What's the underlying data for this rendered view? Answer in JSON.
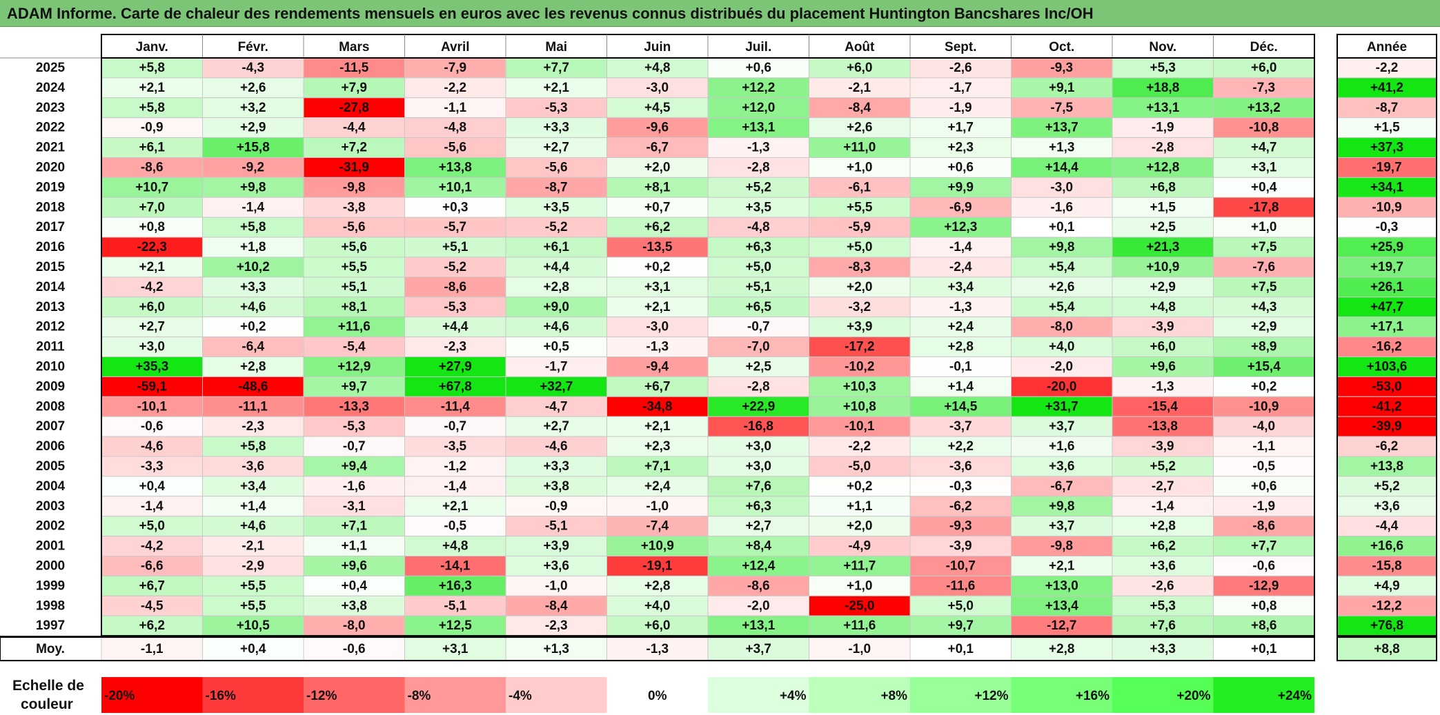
{
  "title": "ADAM Informe. Carte de chaleur des rendements mensuels en euros avec les revenus connus distribués du placement Huntington Bancshares Inc/OH",
  "chart_data": {
    "type": "heatmap",
    "columns": [
      "Janv.",
      "Févr.",
      "Mars",
      "Avril",
      "Mai",
      "Juin",
      "Juil.",
      "Août",
      "Sept.",
      "Oct.",
      "Nov.",
      "Déc."
    ],
    "year_column_label": "Année",
    "rows": [
      {
        "year": "2025",
        "values": [
          "+5,8",
          "-4,3",
          "-11,5",
          "-7,9",
          "+7,7",
          "+4,8",
          "+0,6",
          "+6,0",
          "-2,6",
          "-9,3",
          "+5,3",
          "+6,0"
        ],
        "annual": "-2,2"
      },
      {
        "year": "2024",
        "values": [
          "+2,1",
          "+2,6",
          "+7,9",
          "-2,2",
          "+2,1",
          "-3,0",
          "+12,2",
          "-2,1",
          "-1,7",
          "+9,1",
          "+18,8",
          "-7,3"
        ],
        "annual": "+41,2"
      },
      {
        "year": "2023",
        "values": [
          "+5,8",
          "+3,2",
          "-27,8",
          "-1,1",
          "-5,3",
          "+4,5",
          "+12,0",
          "-8,4",
          "-1,9",
          "-7,5",
          "+13,1",
          "+13,2"
        ],
        "annual": "-8,7"
      },
      {
        "year": "2022",
        "values": [
          "-0,9",
          "+2,9",
          "-4,4",
          "-4,8",
          "+3,3",
          "-9,6",
          "+13,1",
          "+2,6",
          "+1,7",
          "+13,7",
          "-1,9",
          "-10,8"
        ],
        "annual": "+1,5"
      },
      {
        "year": "2021",
        "values": [
          "+6,1",
          "+15,8",
          "+7,2",
          "-5,6",
          "+2,7",
          "-6,7",
          "-1,3",
          "+11,0",
          "+2,3",
          "+1,3",
          "-2,8",
          "+4,7"
        ],
        "annual": "+37,3"
      },
      {
        "year": "2020",
        "values": [
          "-8,6",
          "-9,2",
          "-31,9",
          "+13,8",
          "-5,6",
          "+2,0",
          "-2,8",
          "+1,0",
          "+0,6",
          "+14,4",
          "+12,8",
          "+3,1"
        ],
        "annual": "-19,7"
      },
      {
        "year": "2019",
        "values": [
          "+10,7",
          "+9,8",
          "-9,8",
          "+10,1",
          "-8,7",
          "+8,1",
          "+5,2",
          "-6,1",
          "+9,9",
          "-3,0",
          "+6,8",
          "+0,4"
        ],
        "annual": "+34,1"
      },
      {
        "year": "2018",
        "values": [
          "+7,0",
          "-1,4",
          "-3,8",
          "+0,3",
          "+3,5",
          "+0,7",
          "+3,5",
          "+5,5",
          "-6,9",
          "-1,6",
          "+1,5",
          "-17,8"
        ],
        "annual": "-10,9"
      },
      {
        "year": "2017",
        "values": [
          "+0,8",
          "+5,8",
          "-5,6",
          "-5,7",
          "-5,2",
          "+6,2",
          "-4,8",
          "-5,9",
          "+12,3",
          "+0,1",
          "+2,5",
          "+1,0"
        ],
        "annual": "-0,3"
      },
      {
        "year": "2016",
        "values": [
          "-22,3",
          "+1,8",
          "+5,6",
          "+5,1",
          "+6,1",
          "-13,5",
          "+6,3",
          "+5,0",
          "-1,4",
          "+9,8",
          "+21,3",
          "+7,5"
        ],
        "annual": "+25,9"
      },
      {
        "year": "2015",
        "values": [
          "+2,1",
          "+10,2",
          "+5,5",
          "-5,2",
          "+4,4",
          "+0,2",
          "+5,0",
          "-8,3",
          "-2,4",
          "+5,4",
          "+10,9",
          "-7,6"
        ],
        "annual": "+19,7"
      },
      {
        "year": "2014",
        "values": [
          "-4,2",
          "+3,3",
          "+5,1",
          "-8,6",
          "+2,8",
          "+3,1",
          "+5,1",
          "+2,0",
          "+3,4",
          "+2,6",
          "+2,9",
          "+7,5"
        ],
        "annual": "+26,1"
      },
      {
        "year": "2013",
        "values": [
          "+6,0",
          "+4,6",
          "+8,1",
          "-5,3",
          "+9,0",
          "+2,1",
          "+6,5",
          "-3,2",
          "-1,3",
          "+5,4",
          "+4,8",
          "+4,3"
        ],
        "annual": "+47,7"
      },
      {
        "year": "2012",
        "values": [
          "+2,7",
          "+0,2",
          "+11,6",
          "+4,4",
          "+4,6",
          "-3,0",
          "-0,7",
          "+3,9",
          "+2,4",
          "-8,0",
          "-3,9",
          "+2,9"
        ],
        "annual": "+17,1"
      },
      {
        "year": "2011",
        "values": [
          "+3,0",
          "-6,4",
          "-5,4",
          "-2,3",
          "+0,5",
          "-1,3",
          "-7,0",
          "-17,2",
          "+2,8",
          "+4,0",
          "+6,0",
          "+8,9"
        ],
        "annual": "-16,2"
      },
      {
        "year": "2010",
        "values": [
          "+35,3",
          "+2,8",
          "+12,9",
          "+27,9",
          "-1,7",
          "-9,4",
          "+2,5",
          "-10,2",
          "-0,1",
          "-2,0",
          "+9,6",
          "+15,4"
        ],
        "annual": "+103,6"
      },
      {
        "year": "2009",
        "values": [
          "-59,1",
          "-48,6",
          "+9,7",
          "+67,8",
          "+32,7",
          "+6,7",
          "-2,8",
          "+10,3",
          "+1,4",
          "-20,0",
          "-1,3",
          "+0,2"
        ],
        "annual": "-53,0"
      },
      {
        "year": "2008",
        "values": [
          "-10,1",
          "-11,1",
          "-13,3",
          "-11,4",
          "-4,7",
          "-34,8",
          "+22,9",
          "+10,8",
          "+14,5",
          "+31,7",
          "-15,4",
          "-10,9"
        ],
        "annual": "-41,2"
      },
      {
        "year": "2007",
        "values": [
          "-0,6",
          "-2,3",
          "-5,3",
          "-0,7",
          "+2,7",
          "+2,1",
          "-16,8",
          "-10,1",
          "-3,7",
          "+3,7",
          "-13,8",
          "-4,0"
        ],
        "annual": "-39,9"
      },
      {
        "year": "2006",
        "values": [
          "-4,6",
          "+5,8",
          "-0,7",
          "-3,5",
          "-4,6",
          "+2,3",
          "+3,0",
          "-2,2",
          "+2,2",
          "+1,6",
          "-3,9",
          "-1,1"
        ],
        "annual": "-6,2"
      },
      {
        "year": "2005",
        "values": [
          "-3,3",
          "-3,6",
          "+9,4",
          "-1,2",
          "+3,3",
          "+7,1",
          "+3,0",
          "-5,0",
          "-3,6",
          "+3,6",
          "+5,2",
          "-0,5"
        ],
        "annual": "+13,8"
      },
      {
        "year": "2004",
        "values": [
          "+0,4",
          "+3,4",
          "-1,6",
          "-1,4",
          "+3,8",
          "+2,4",
          "+7,6",
          "+0,2",
          "-0,3",
          "-6,7",
          "-2,7",
          "+0,6"
        ],
        "annual": "+5,2"
      },
      {
        "year": "2003",
        "values": [
          "-1,4",
          "+1,4",
          "-3,1",
          "+2,1",
          "-0,9",
          "-1,0",
          "+6,3",
          "+1,1",
          "-6,2",
          "+9,8",
          "-1,4",
          "-1,9"
        ],
        "annual": "+3,6"
      },
      {
        "year": "2002",
        "values": [
          "+5,0",
          "+4,6",
          "+7,1",
          "-0,5",
          "-5,1",
          "-7,4",
          "+2,7",
          "+2,0",
          "-9,3",
          "+3,7",
          "+2,8",
          "-8,6"
        ],
        "annual": "-4,4"
      },
      {
        "year": "2001",
        "values": [
          "-4,2",
          "-2,1",
          "+1,1",
          "+4,8",
          "+3,9",
          "+10,9",
          "+8,4",
          "-4,9",
          "-3,9",
          "-9,8",
          "+6,2",
          "+7,7"
        ],
        "annual": "+16,6"
      },
      {
        "year": "2000",
        "values": [
          "-6,6",
          "-2,9",
          "+9,6",
          "-14,1",
          "+3,6",
          "-19,1",
          "+12,4",
          "+11,7",
          "-10,7",
          "+2,1",
          "+3,6",
          "-0,6"
        ],
        "annual": "-15,8"
      },
      {
        "year": "1999",
        "values": [
          "+6,7",
          "+5,5",
          "+0,4",
          "+16,3",
          "-1,0",
          "+2,8",
          "-8,6",
          "+1,0",
          "-11,6",
          "+13,0",
          "-2,6",
          "-12,9"
        ],
        "annual": "+4,9"
      },
      {
        "year": "1998",
        "values": [
          "-4,5",
          "+5,5",
          "+3,8",
          "-5,1",
          "-8,4",
          "+4,0",
          "-2,0",
          "-25,0",
          "+5,0",
          "+13,4",
          "+5,3",
          "+0,8"
        ],
        "annual": "-12,2"
      },
      {
        "year": "1997",
        "values": [
          "+6,2",
          "+10,5",
          "-8,0",
          "+12,5",
          "-2,3",
          "+6,0",
          "+13,1",
          "+11,6",
          "+9,7",
          "-12,7",
          "+7,6",
          "+8,6"
        ],
        "annual": "+76,8"
      }
    ],
    "average": {
      "label": "Moy.",
      "values": [
        "-1,1",
        "+0,4",
        "-0,6",
        "+3,1",
        "+1,3",
        "-1,3",
        "+3,7",
        "-1,0",
        "+0,1",
        "+2,8",
        "+3,3",
        "+0,1"
      ],
      "annual": "+8,8"
    },
    "scale": {
      "label_line1": "Echelle de",
      "label_line2": "couleur",
      "steps": [
        {
          "label": "-20%",
          "color": "#ff0000"
        },
        {
          "label": "-16%",
          "color": "#ff3a3a"
        },
        {
          "label": "-12%",
          "color": "#ff6666"
        },
        {
          "label": "-8%",
          "color": "#ff9999"
        },
        {
          "label": "-4%",
          "color": "#ffcccc"
        },
        {
          "label": "0%",
          "color": "#ffffff"
        },
        {
          "label": "+4%",
          "color": "#ddffdd"
        },
        {
          "label": "+8%",
          "color": "#bbffbb"
        },
        {
          "label": "+12%",
          "color": "#99ff99"
        },
        {
          "label": "+16%",
          "color": "#77ff77"
        },
        {
          "label": "+20%",
          "color": "#55ff55"
        },
        {
          "label": "+24%",
          "color": "#22ee22"
        }
      ]
    },
    "colors": {
      "negative_max": "#ff0000",
      "positive_max": "#00e000",
      "title_bar": "#7cc576"
    }
  }
}
